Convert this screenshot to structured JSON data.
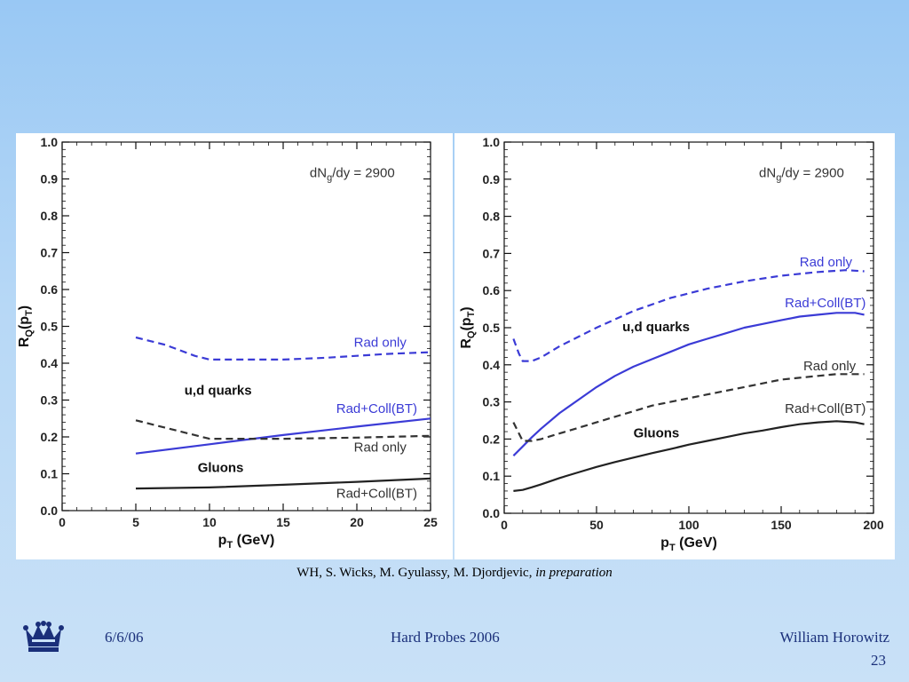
{
  "chart_data": [
    {
      "type": "line",
      "title": "",
      "xlabel": "p_T (GeV)",
      "ylabel": "R_Q(p_T)",
      "xlim": [
        0,
        25
      ],
      "ylim": [
        0,
        1.0
      ],
      "xticks": [
        0,
        5,
        10,
        15,
        20,
        25
      ],
      "yticks": [
        0.0,
        0.1,
        0.2,
        0.3,
        0.4,
        0.5,
        0.6,
        0.7,
        0.8,
        0.9,
        1.0
      ],
      "grid": false,
      "series": [
        {
          "name": "Rad only",
          "group": "u,d quarks",
          "color": "#3b3bd6",
          "dash": true,
          "x": [
            5,
            7,
            9,
            10,
            12,
            15,
            18,
            20,
            22,
            25
          ],
          "y": [
            0.47,
            0.45,
            0.42,
            0.41,
            0.41,
            0.41,
            0.415,
            0.42,
            0.425,
            0.43
          ]
        },
        {
          "name": "Rad+Coll(BT)",
          "group": "u,d quarks",
          "color": "#3b3bd6",
          "dash": false,
          "x": [
            5,
            10,
            15,
            20,
            25
          ],
          "y": [
            0.155,
            0.18,
            0.205,
            0.228,
            0.25
          ]
        },
        {
          "name": "Rad only",
          "group": "Gluons",
          "color": "#333333",
          "dash": true,
          "x": [
            5,
            8,
            10,
            12,
            15,
            20,
            25
          ],
          "y": [
            0.245,
            0.215,
            0.195,
            0.195,
            0.195,
            0.198,
            0.203
          ]
        },
        {
          "name": "Rad+Coll(BT)",
          "group": "Gluons",
          "color": "#222222",
          "dash": false,
          "x": [
            5,
            10,
            15,
            20,
            25
          ],
          "y": [
            0.06,
            0.063,
            0.07,
            0.078,
            0.087
          ]
        }
      ],
      "annotations": [
        {
          "text": "dN_g/dy = 2900",
          "x": 16.8,
          "y": 0.905,
          "color": "#333333"
        },
        {
          "text": "Rad only",
          "x": 19.8,
          "y": 0.445,
          "color": "#3b3bd6"
        },
        {
          "text": "u,d quarks",
          "x": 8.3,
          "y": 0.315,
          "color": "#111111",
          "bold": true
        },
        {
          "text": "Rad+Coll(BT)",
          "x": 18.6,
          "y": 0.265,
          "color": "#3b3bd6"
        },
        {
          "text": "Rad only",
          "x": 19.8,
          "y": 0.16,
          "color": "#333333"
        },
        {
          "text": "Gluons",
          "x": 9.2,
          "y": 0.105,
          "color": "#111111",
          "bold": true
        },
        {
          "text": "Rad+Coll(BT)",
          "x": 18.6,
          "y": 0.035,
          "color": "#333333"
        }
      ]
    },
    {
      "type": "line",
      "title": "",
      "xlabel": "p_T (GeV)",
      "ylabel": "R_Q(p_T)",
      "xlim": [
        0,
        200
      ],
      "ylim": [
        0,
        1.0
      ],
      "xticks": [
        0,
        50,
        100,
        150,
        200
      ],
      "yticks": [
        0.0,
        0.1,
        0.2,
        0.3,
        0.4,
        0.5,
        0.6,
        0.7,
        0.8,
        0.9,
        1.0
      ],
      "grid": false,
      "series": [
        {
          "name": "Rad only",
          "group": "u,d quarks",
          "color": "#3b3bd6",
          "dash": true,
          "x": [
            5,
            8,
            10,
            12,
            15,
            20,
            30,
            50,
            70,
            90,
            110,
            130,
            150,
            170,
            185,
            195
          ],
          "y": [
            0.47,
            0.43,
            0.41,
            0.41,
            0.41,
            0.42,
            0.45,
            0.5,
            0.545,
            0.58,
            0.605,
            0.625,
            0.64,
            0.65,
            0.655,
            0.652
          ]
        },
        {
          "name": "Rad+Coll(BT)",
          "group": "u,d quarks",
          "color": "#3b3bd6",
          "dash": false,
          "x": [
            5,
            10,
            15,
            20,
            30,
            40,
            50,
            60,
            70,
            80,
            90,
            100,
            110,
            120,
            130,
            140,
            150,
            160,
            170,
            180,
            190,
            195
          ],
          "y": [
            0.155,
            0.18,
            0.205,
            0.228,
            0.27,
            0.305,
            0.34,
            0.37,
            0.395,
            0.415,
            0.435,
            0.455,
            0.47,
            0.485,
            0.5,
            0.51,
            0.52,
            0.53,
            0.535,
            0.54,
            0.54,
            0.535
          ]
        },
        {
          "name": "Rad only",
          "group": "Gluons",
          "color": "#333333",
          "dash": true,
          "x": [
            5,
            8,
            10,
            15,
            20,
            30,
            40,
            50,
            60,
            70,
            80,
            90,
            100,
            110,
            120,
            130,
            140,
            150,
            160,
            170,
            180,
            190,
            195
          ],
          "y": [
            0.245,
            0.215,
            0.195,
            0.195,
            0.2,
            0.215,
            0.23,
            0.245,
            0.26,
            0.275,
            0.29,
            0.3,
            0.31,
            0.32,
            0.33,
            0.34,
            0.35,
            0.36,
            0.365,
            0.37,
            0.375,
            0.375,
            0.375
          ]
        },
        {
          "name": "Rad+Coll(BT)",
          "group": "Gluons",
          "color": "#222222",
          "dash": false,
          "x": [
            5,
            10,
            15,
            20,
            30,
            40,
            50,
            60,
            70,
            80,
            90,
            100,
            110,
            120,
            130,
            140,
            150,
            160,
            170,
            180,
            190,
            195
          ],
          "y": [
            0.06,
            0.063,
            0.07,
            0.078,
            0.095,
            0.11,
            0.125,
            0.138,
            0.15,
            0.162,
            0.173,
            0.185,
            0.195,
            0.205,
            0.215,
            0.223,
            0.232,
            0.24,
            0.245,
            0.248,
            0.245,
            0.24
          ]
        }
      ],
      "annotations": [
        {
          "text": "dN_g/dy = 2900",
          "x": 138,
          "y": 0.905,
          "color": "#333333"
        },
        {
          "text": "Rad only",
          "x": 160,
          "y": 0.665,
          "color": "#3b3bd6"
        },
        {
          "text": "Rad+Coll(BT)",
          "x": 152,
          "y": 0.555,
          "color": "#3b3bd6"
        },
        {
          "text": "u,d quarks",
          "x": 64,
          "y": 0.49,
          "color": "#111111",
          "bold": true
        },
        {
          "text": "Rad only",
          "x": 162,
          "y": 0.385,
          "color": "#333333"
        },
        {
          "text": "Rad+Coll(BT)",
          "x": 152,
          "y": 0.27,
          "color": "#333333"
        },
        {
          "text": "Gluons",
          "x": 70,
          "y": 0.205,
          "color": "#111111",
          "bold": true
        }
      ]
    }
  ],
  "caption": {
    "authors": "WH, S. Wicks, M. Gyulassy, M. Djordjevic, ",
    "status": "in preparation"
  },
  "footer": {
    "date": "6/6/06",
    "center": "Hard Probes 2006",
    "author": "William Horowitz",
    "page": "23",
    "logo_icon": "crown-icon"
  }
}
